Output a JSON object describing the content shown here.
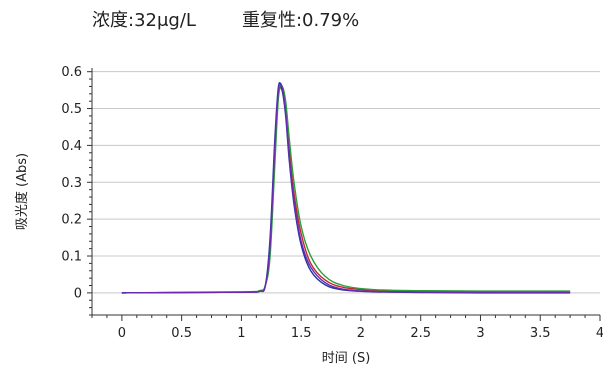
{
  "header": {
    "concentration": "浓度:32μg/L",
    "repeatability": "重复性:0.79%"
  },
  "chart_data": {
    "type": "line",
    "xlabel": "时间 (S)",
    "ylabel": "吸光度 (Abs)",
    "xlim": [
      -0.25,
      4.0
    ],
    "ylim": [
      -0.06,
      0.61
    ],
    "xticks": [
      0,
      0.5,
      1,
      1.5,
      2,
      2.5,
      3,
      3.5,
      4
    ],
    "xtick_labels": [
      "0",
      "0.5",
      "1",
      "1.5",
      "2",
      "2.5",
      "3",
      "3.5",
      "4"
    ],
    "yticks": [
      0,
      0.1,
      0.2,
      0.3,
      0.4,
      0.5,
      0.6
    ],
    "ytick_labels": [
      "0",
      "0.1",
      "0.2",
      "0.3",
      "0.4",
      "0.5",
      "0.6"
    ],
    "grid": "horizontal",
    "series": [
      {
        "color": "#c0282d",
        "x": [
          0,
          1.0,
          1.15,
          1.2,
          1.24,
          1.28,
          1.31,
          1.34,
          1.37,
          1.4,
          1.44,
          1.5,
          1.58,
          1.7,
          1.85,
          2.1,
          2.5,
          3.0,
          3.75
        ],
        "y": [
          0,
          0.002,
          0.005,
          0.02,
          0.12,
          0.38,
          0.54,
          0.55,
          0.5,
          0.39,
          0.27,
          0.16,
          0.08,
          0.035,
          0.015,
          0.007,
          0.004,
          0.003,
          0.003
        ]
      },
      {
        "color": "#2e9e3a",
        "x": [
          0,
          1.0,
          1.15,
          1.2,
          1.24,
          1.28,
          1.31,
          1.34,
          1.37,
          1.4,
          1.44,
          1.5,
          1.58,
          1.7,
          1.85,
          2.1,
          2.5,
          3.0,
          3.75
        ],
        "y": [
          0,
          0.003,
          0.006,
          0.02,
          0.1,
          0.35,
          0.53,
          0.56,
          0.52,
          0.42,
          0.3,
          0.18,
          0.1,
          0.045,
          0.02,
          0.009,
          0.006,
          0.005,
          0.005
        ]
      },
      {
        "color": "#2233aa",
        "x": [
          0,
          1.0,
          1.15,
          1.2,
          1.24,
          1.28,
          1.31,
          1.34,
          1.37,
          1.4,
          1.44,
          1.5,
          1.58,
          1.7,
          1.85,
          2.1,
          2.5,
          3.0,
          3.75
        ],
        "y": [
          0,
          0.002,
          0.004,
          0.02,
          0.15,
          0.42,
          0.56,
          0.55,
          0.48,
          0.36,
          0.24,
          0.13,
          0.06,
          0.022,
          0.008,
          0.003,
          0.001,
          0.0,
          0.0
        ]
      },
      {
        "color": "#6a2bb0",
        "x": [
          0,
          1.0,
          1.15,
          1.2,
          1.24,
          1.28,
          1.31,
          1.34,
          1.37,
          1.4,
          1.44,
          1.5,
          1.58,
          1.7,
          1.85,
          2.1,
          2.5,
          3.0,
          3.75
        ],
        "y": [
          0,
          0.002,
          0.004,
          0.018,
          0.13,
          0.4,
          0.55,
          0.56,
          0.49,
          0.37,
          0.25,
          0.14,
          0.07,
          0.028,
          0.01,
          0.004,
          0.002,
          0.001,
          0.001
        ]
      }
    ]
  }
}
